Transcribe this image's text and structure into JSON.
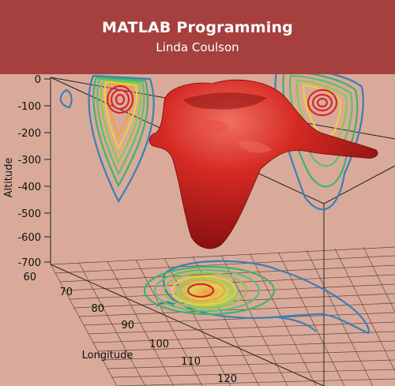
{
  "cover": {
    "title": "MATLAB Programming",
    "author": "Linda Coulson"
  },
  "figure": {
    "altitude_axis": {
      "label": "Altitude",
      "ticks": [
        "0",
        "-100",
        "-200",
        "-300",
        "-400",
        "-500",
        "-600",
        "-700"
      ]
    },
    "longitude_axis": {
      "label": "Longitude",
      "ticks": [
        "60",
        "70",
        "80",
        "90",
        "100",
        "110",
        "120"
      ]
    },
    "colors": {
      "background": "#d9aa9a",
      "banner": "#a5403e",
      "surface": "#c8161a",
      "contour_outer": "#3a7fb8",
      "contour_mid": "#3fb36a",
      "contour_yellow": "#e8d23a",
      "contour_inner": "#d8262a"
    }
  }
}
